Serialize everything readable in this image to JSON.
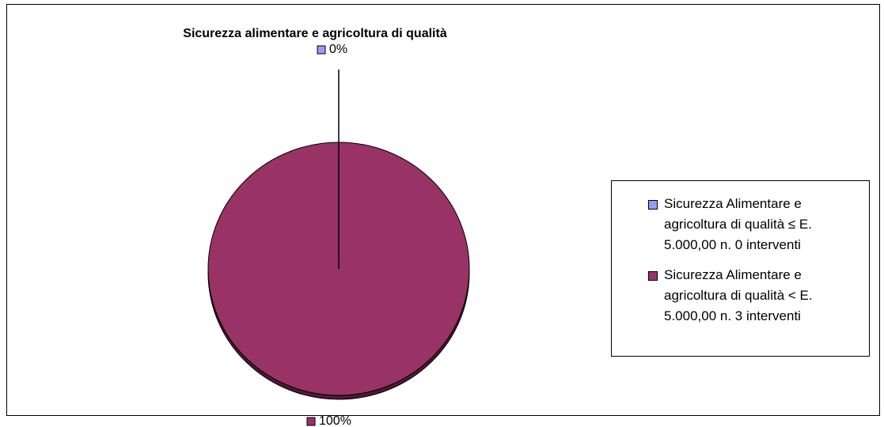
{
  "chart_data": {
    "type": "pie",
    "title": "Sicurezza alimentare e agricoltura di qualità",
    "categories": [
      "Sicurezza Alimentare e agricoltura di qualità ≤ E. 5.000,00 n. 0 interventi",
      "Sicurezza Alimentare e agricoltura di qualità < E. 5.000,00 n. 3 interventi"
    ],
    "values": [
      0,
      100
    ],
    "value_labels": [
      "0%",
      "100%"
    ],
    "colors": [
      "#9999ff",
      "#993366"
    ],
    "legend": "right"
  }
}
